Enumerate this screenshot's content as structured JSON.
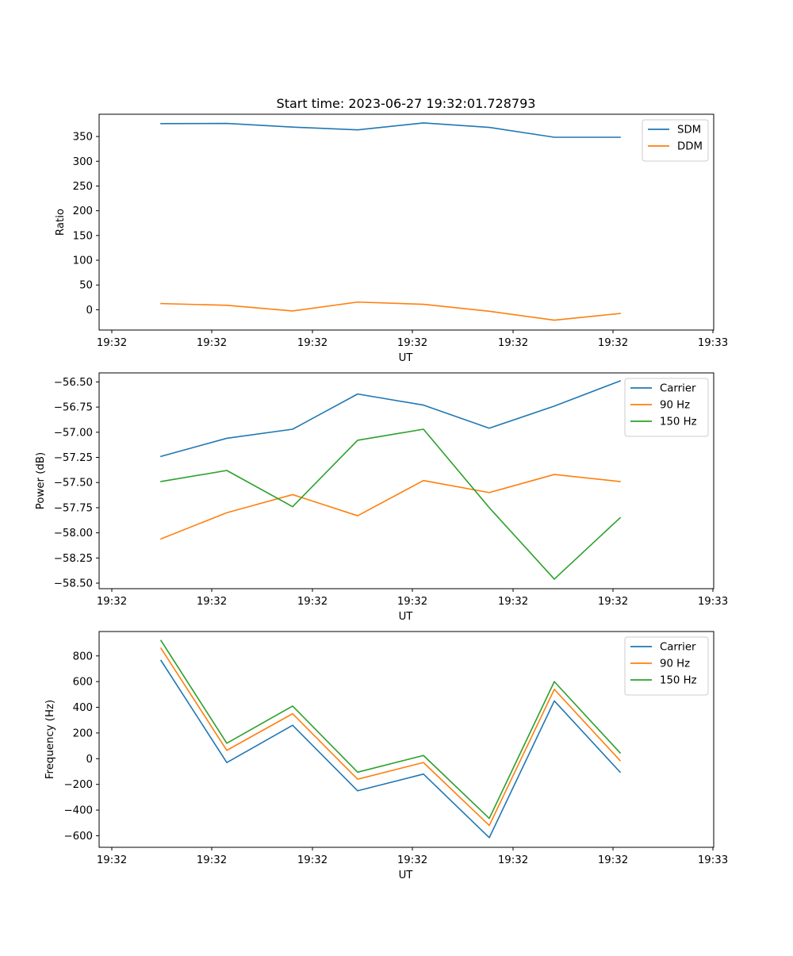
{
  "title": "Start time: 2023-06-27 19:32:01.728793",
  "chart_data": [
    {
      "type": "line",
      "xlabel": "UT",
      "ylabel": "Ratio",
      "x_tick_labels": [
        "19:32",
        "19:32",
        "19:32",
        "19:32",
        "19:32",
        "19:32",
        "19:33"
      ],
      "ylim": [
        -41,
        395
      ],
      "yticks": [
        0,
        50,
        100,
        150,
        200,
        250,
        300,
        350
      ],
      "ytick_labels": [
        "0",
        "50",
        "100",
        "150",
        "200",
        "250",
        "300",
        "350"
      ],
      "legend_position": "top-right",
      "series": [
        {
          "name": "SDM",
          "color": "#1f77b4",
          "values": [
            376,
            376.5,
            369,
            363.5,
            377.5,
            368.5,
            348.5,
            348.5
          ]
        },
        {
          "name": "DDM",
          "color": "#ff7f0e",
          "values": [
            12.5,
            9,
            -2.5,
            15.5,
            11,
            -3,
            -21,
            -7.5
          ]
        }
      ]
    },
    {
      "type": "line",
      "xlabel": "UT",
      "ylabel": "Power (dB)",
      "x_tick_labels": [
        "19:32",
        "19:32",
        "19:32",
        "19:32",
        "19:32",
        "19:32",
        "19:33"
      ],
      "ylim": [
        -58.555,
        -56.41
      ],
      "yticks": [
        -58.5,
        -58.25,
        -58.0,
        -57.75,
        -57.5,
        -57.25,
        -57.0,
        -56.75,
        -56.5
      ],
      "ytick_labels": [
        "−58.50",
        "−58.25",
        "−58.00",
        "−57.75",
        "−57.50",
        "−57.25",
        "−57.00",
        "−56.75",
        "−56.50"
      ],
      "legend_position": "top-right",
      "series": [
        {
          "name": "Carrier",
          "color": "#1f77b4",
          "values": [
            -57.24,
            -57.06,
            -56.97,
            -56.62,
            -56.73,
            -56.96,
            -56.74,
            -56.49
          ]
        },
        {
          "name": "90 Hz",
          "color": "#ff7f0e",
          "values": [
            -58.06,
            -57.8,
            -57.62,
            -57.83,
            -57.48,
            -57.6,
            -57.42,
            -57.49
          ]
        },
        {
          "name": "150 Hz",
          "color": "#2ca02c",
          "values": [
            -57.49,
            -57.38,
            -57.74,
            -57.08,
            -56.97,
            -57.75,
            -58.46,
            -57.85
          ]
        }
      ]
    },
    {
      "type": "line",
      "xlabel": "UT",
      "ylabel": "Frequency (Hz)",
      "x_tick_labels": [
        "19:32",
        "19:32",
        "19:32",
        "19:32",
        "19:32",
        "19:32",
        "19:33"
      ],
      "ylim": [
        -690,
        990
      ],
      "yticks": [
        -600,
        -400,
        -200,
        0,
        200,
        400,
        600,
        800
      ],
      "ytick_labels": [
        "−600",
        "−400",
        "−200",
        "0",
        "200",
        "400",
        "600",
        "800"
      ],
      "legend_position": "top-right",
      "series": [
        {
          "name": "Carrier",
          "color": "#1f77b4",
          "values": [
            765,
            -30,
            260,
            -250,
            -120,
            -615,
            450,
            -105
          ]
        },
        {
          "name": "90 Hz",
          "color": "#ff7f0e",
          "values": [
            860,
            65,
            350,
            -160,
            -30,
            -520,
            540,
            -15
          ]
        },
        {
          "name": "150 Hz",
          "color": "#2ca02c",
          "values": [
            920,
            120,
            410,
            -105,
            25,
            -465,
            600,
            45
          ]
        }
      ]
    }
  ]
}
